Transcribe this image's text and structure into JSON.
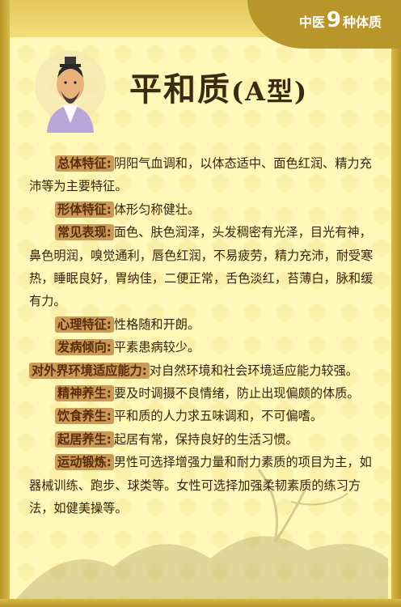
{
  "header": {
    "prefix": "中医",
    "number": "9",
    "suffix": "种体质"
  },
  "title": {
    "main": "平和质",
    "sub": "(A型)"
  },
  "sections": [
    {
      "label": "总体特征:",
      "text": "阴阳气血调和，以体态适中、面色红润、精力充沛等为主要特征。"
    },
    {
      "label": "形体特征:",
      "text": "体形匀称健壮。"
    },
    {
      "label": "常见表现:",
      "text": "面色、肤色润泽，头发稠密有光泽，目光有神，鼻色明润，嗅觉通利，唇色红润，不易疲劳，精力充沛，耐受寒热，睡眠良好，胃纳佳，二便正常，舌色淡红，苔薄白，脉和缓有力。"
    },
    {
      "label": "心理特征:",
      "text": "性格随和开朗。"
    },
    {
      "label": "发病倾向:",
      "text": "平素患病较少。"
    },
    {
      "label": "对外界环境适应能力:",
      "text": "对自然环境和社会环境适应能力较强。"
    },
    {
      "label": "精神养生:",
      "text": "要及时调摄不良情绪，防止出现偏颇的体质。"
    },
    {
      "label": "饮食养生:",
      "text": "平和质的人力求五味调和，不可偏嗜。"
    },
    {
      "label": "起居养生:",
      "text": "起居有常，保持良好的生活习惯。"
    },
    {
      "label": "运动锻炼:",
      "text": "男性可选择增强力量和耐力素质的项目为主，如器械训练、跑步、球类等。女性可选择加强柔韧素质的练习方法，如健美操等。"
    }
  ],
  "colors": {
    "background": "#fff8b8",
    "frame": "#b8962a",
    "label_bg": "#c99a58",
    "text": "#3a2208"
  }
}
